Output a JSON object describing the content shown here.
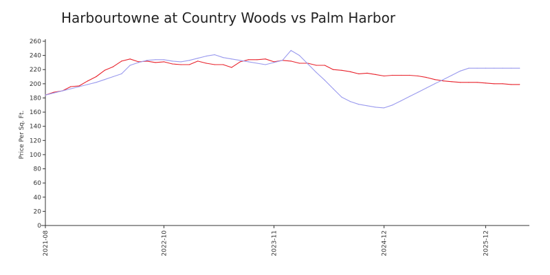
{
  "chart_data": {
    "type": "line",
    "title": "Harbourtowne at Country Woods vs Palm Harbor",
    "xlabel": "",
    "ylabel": "Price Per Sq. Ft.",
    "ylim": [
      0,
      260
    ],
    "y_ticks": [
      0,
      20,
      40,
      60,
      80,
      100,
      120,
      140,
      160,
      180,
      200,
      220,
      240,
      260
    ],
    "x_ticks": [
      "2021-08",
      "2022-10",
      "2023-11",
      "2024-12",
      "2025-12"
    ],
    "x_range": [
      "2021-08",
      "2026-05"
    ],
    "grid": false,
    "legend": "none",
    "series": [
      {
        "color": "#e8202a",
        "x": [
          "2021-08",
          "2021-09",
          "2021-10",
          "2021-11",
          "2021-12",
          "2022-01",
          "2022-02",
          "2022-03",
          "2022-04",
          "2022-05",
          "2022-06",
          "2022-07",
          "2022-08",
          "2022-09",
          "2022-10",
          "2022-11",
          "2022-12",
          "2023-01",
          "2023-02",
          "2023-03",
          "2023-04",
          "2023-05",
          "2023-06",
          "2023-07",
          "2023-08",
          "2023-09",
          "2023-10",
          "2023-11",
          "2023-12",
          "2024-01",
          "2024-02",
          "2024-03",
          "2024-04",
          "2024-05",
          "2024-06",
          "2024-07",
          "2024-08",
          "2024-09",
          "2024-10",
          "2024-11",
          "2024-12",
          "2025-01",
          "2025-02",
          "2025-03",
          "2025-04",
          "2025-05",
          "2025-06",
          "2025-07",
          "2025-08",
          "2025-09",
          "2025-10",
          "2025-11",
          "2025-12",
          "2026-01",
          "2026-02",
          "2026-03",
          "2026-04"
        ],
        "values": [
          184,
          188,
          190,
          196,
          197,
          204,
          210,
          219,
          224,
          232,
          235,
          231,
          232,
          230,
          231,
          228,
          227,
          227,
          232,
          229,
          227,
          227,
          223,
          231,
          234,
          234,
          235,
          231,
          233,
          232,
          229,
          229,
          226,
          226,
          220,
          219,
          217,
          214,
          215,
          213,
          211,
          212,
          212,
          212,
          211,
          209,
          206,
          204,
          203,
          202,
          202,
          202,
          201,
          200,
          200,
          199,
          199
        ]
      },
      {
        "color": "#9999ee",
        "x": [
          "2021-08",
          "2021-09",
          "2021-10",
          "2021-11",
          "2021-12",
          "2022-01",
          "2022-02",
          "2022-03",
          "2022-04",
          "2022-05",
          "2022-06",
          "2022-07",
          "2022-08",
          "2022-09",
          "2022-10",
          "2022-11",
          "2022-12",
          "2023-01",
          "2023-02",
          "2023-03",
          "2023-04",
          "2023-05",
          "2023-06",
          "2023-07",
          "2023-08",
          "2023-09",
          "2023-10",
          "2023-11",
          "2023-12",
          "2024-01",
          "2024-02",
          "2024-03",
          "2024-04",
          "2024-05",
          "2024-06",
          "2024-07",
          "2024-08",
          "2024-09",
          "2024-10",
          "2024-11",
          "2024-12",
          "2025-01",
          "2025-02",
          "2025-03",
          "2025-04",
          "2025-05",
          "2025-06",
          "2025-07",
          "2025-08",
          "2025-09",
          "2025-10",
          "2025-11",
          "2025-12",
          "2026-01",
          "2026-02",
          "2026-03",
          "2026-04"
        ],
        "values": [
          184,
          187,
          190,
          193,
          196,
          199,
          202,
          206,
          210,
          214,
          226,
          230,
          233,
          234,
          234,
          232,
          231,
          233,
          236,
          239,
          241,
          237,
          235,
          233,
          231,
          229,
          227,
          230,
          233,
          247,
          240,
          228,
          216,
          205,
          193,
          181,
          175,
          171,
          169,
          167,
          166,
          170,
          176,
          182,
          188,
          194,
          200,
          206,
          212,
          218,
          222,
          222,
          222,
          222,
          222,
          222,
          222
        ]
      }
    ]
  }
}
